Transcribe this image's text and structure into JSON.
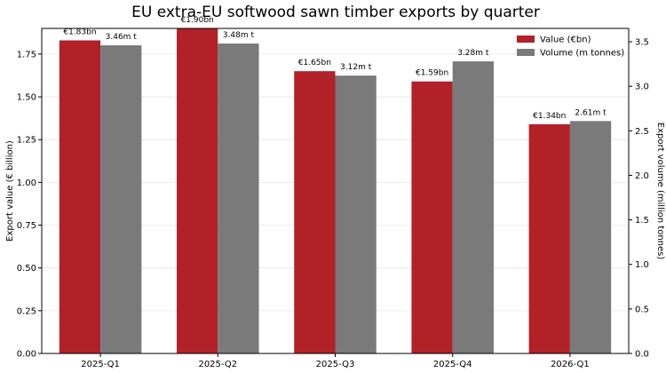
{
  "chart_data": {
    "type": "bar",
    "title": "EU extra-EU softwood sawn timber exports by quarter",
    "categories": [
      "2025-Q1",
      "2025-Q2",
      "2025-Q3",
      "2025-Q4",
      "2026-Q1"
    ],
    "series": [
      {
        "name": "Value (€bn)",
        "axis": "left",
        "color": "#b22028",
        "values": [
          1.83,
          1.9,
          1.65,
          1.59,
          1.34
        ],
        "labels": [
          "€1.83bn",
          "€1.90bn",
          "€1.65bn",
          "€1.59bn",
          "€1.34bn"
        ]
      },
      {
        "name": "Volume (m tonnes)",
        "axis": "right",
        "color": "#7a7a7a",
        "values": [
          3.46,
          3.48,
          3.12,
          3.28,
          2.61
        ],
        "labels": [
          "3.46m t",
          "3.48m t",
          "3.12m t",
          "3.28m t",
          "2.61m t"
        ]
      }
    ],
    "ylabel": "Export value (€ billion)",
    "y2label": "Export volume (million tonnes)",
    "ylim": [
      0,
      1.9
    ],
    "y2lim": [
      0,
      3.65
    ],
    "yticks": [
      "0.00",
      "0.25",
      "0.50",
      "0.75",
      "1.00",
      "1.25",
      "1.50",
      "1.75"
    ],
    "y2ticks": [
      "0.0",
      "0.5",
      "1.0",
      "1.5",
      "2.0",
      "2.5",
      "3.0",
      "3.5"
    ],
    "grid": "horizontal",
    "legend_position": "top-right"
  }
}
